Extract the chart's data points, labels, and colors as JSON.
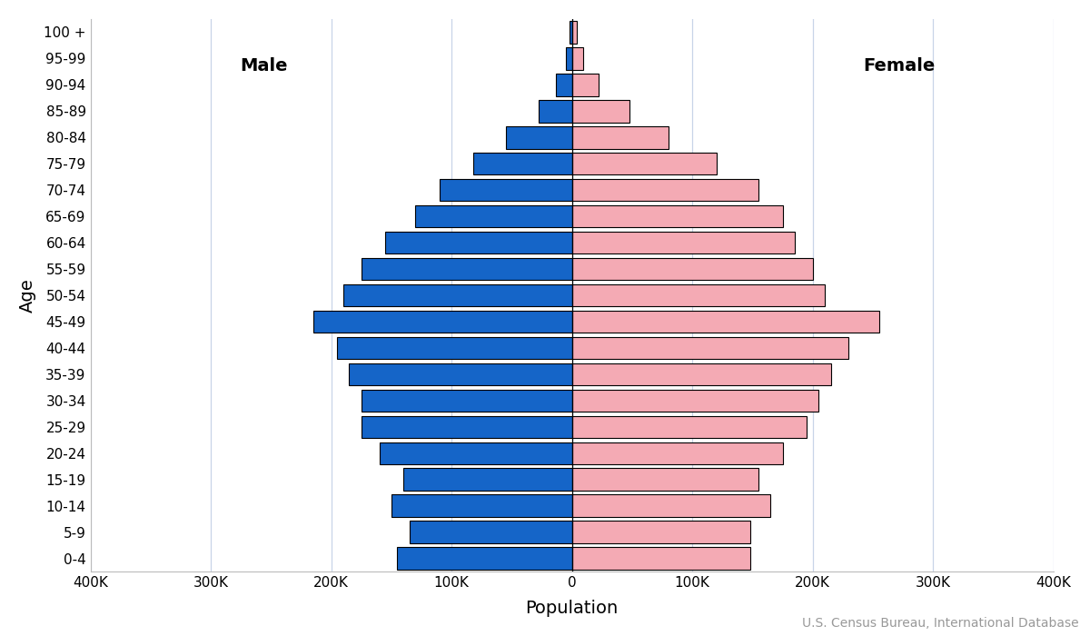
{
  "age_groups": [
    "0-4",
    "5-9",
    "10-14",
    "15-19",
    "20-24",
    "25-29",
    "30-34",
    "35-39",
    "40-44",
    "45-49",
    "50-54",
    "55-59",
    "60-64",
    "65-69",
    "70-74",
    "75-79",
    "80-84",
    "85-89",
    "90-94",
    "95-99",
    "100 +"
  ],
  "male": [
    145000,
    135000,
    150000,
    140000,
    160000,
    175000,
    175000,
    185000,
    195000,
    215000,
    190000,
    175000,
    155000,
    130000,
    110000,
    82000,
    55000,
    28000,
    13000,
    5000,
    2000
  ],
  "female": [
    148000,
    148000,
    165000,
    155000,
    175000,
    195000,
    205000,
    215000,
    230000,
    255000,
    210000,
    200000,
    185000,
    175000,
    155000,
    120000,
    80000,
    48000,
    22000,
    9000,
    4000
  ],
  "male_color": "#1565c8",
  "female_color": "#f4aab4",
  "edge_color": "#000000",
  "background_color": "#ffffff",
  "xlabel": "Population",
  "ylabel": "Age",
  "male_label": "Male",
  "female_label": "Female",
  "source_text": "U.S. Census Bureau, International Database",
  "xlim": 400000,
  "xtick_step": 100000,
  "grid_color": "#c8d4e8",
  "tick_fontsize": 11,
  "label_fontsize": 14,
  "gender_label_fontsize": 14,
  "source_fontsize": 10
}
